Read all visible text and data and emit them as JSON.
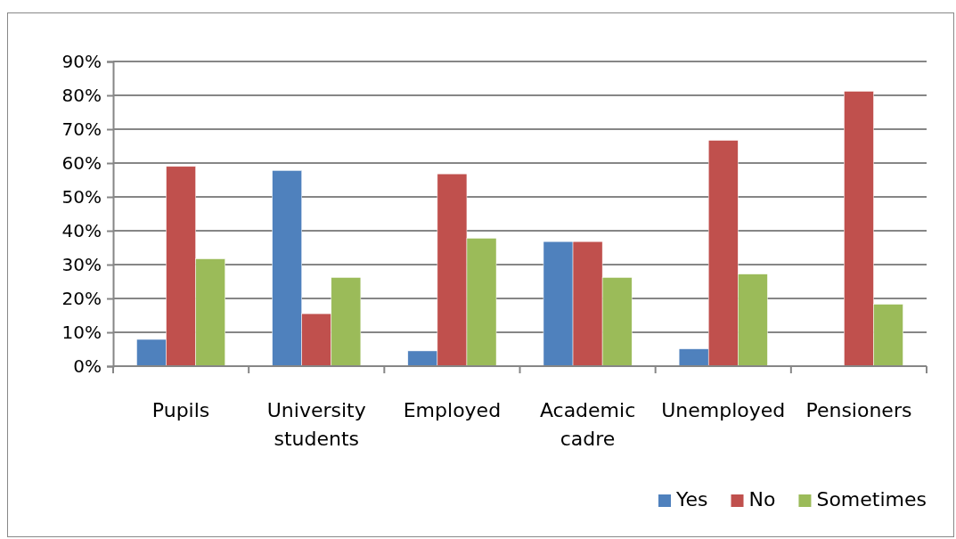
{
  "chart_data": {
    "type": "bar",
    "categories": [
      "Pupils",
      "University students",
      "Employed",
      "Academic cadre",
      "Unemployed",
      "Pensioners"
    ],
    "series": [
      {
        "name": "Yes",
        "color": "#4f81bd",
        "values": [
          7.9,
          57.8,
          4.5,
          36.8,
          5.1,
          0
        ]
      },
      {
        "name": "No",
        "color": "#c0504d",
        "values": [
          59,
          15.5,
          56.8,
          36.8,
          66.7,
          81.2
        ]
      },
      {
        "name": "Sometimes",
        "color": "#9bbb59",
        "values": [
          31.7,
          26.2,
          37.8,
          26.2,
          27.2,
          18.3
        ]
      }
    ],
    "ylim": [
      0,
      90
    ],
    "yticks": [
      {
        "value": 0,
        "label": "0%"
      },
      {
        "value": 10,
        "label": "10%"
      },
      {
        "value": 20,
        "label": "20%"
      },
      {
        "value": 30,
        "label": "30%"
      },
      {
        "value": 40,
        "label": "40%"
      },
      {
        "value": 50,
        "label": "50%"
      },
      {
        "value": 60,
        "label": "60%"
      },
      {
        "value": 70,
        "label": "70%"
      },
      {
        "value": 80,
        "label": "80%"
      },
      {
        "value": 90,
        "label": "90%"
      }
    ],
    "grid": "y",
    "legend": "bottom right"
  }
}
